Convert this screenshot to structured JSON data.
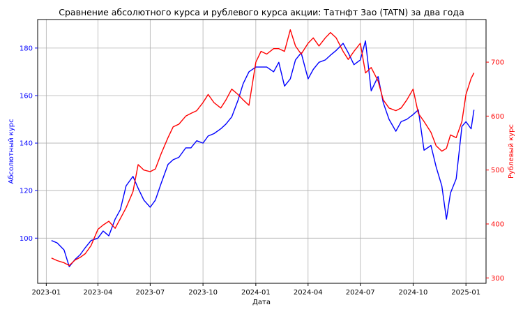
{
  "chart_data": {
    "type": "line",
    "title": "Сравнение абсолютного курса и рублевого курса акции: Татнфт 3ао (TATN) за два года",
    "xlabel": "Дата",
    "ylabel_left": "Абсолютный курс",
    "ylabel_right": "Рублевый курс",
    "x_ticks": [
      "2023-01",
      "2023-04",
      "2023-07",
      "2023-10",
      "2024-01",
      "2024-04",
      "2024-07",
      "2024-10",
      "2025-01"
    ],
    "y_left_ticks": [
      100,
      120,
      140,
      160,
      180
    ],
    "y_right_ticks": [
      300,
      400,
      500,
      600,
      700
    ],
    "y_left_range": [
      81,
      192
    ],
    "y_right_range": [
      290,
      779
    ],
    "x_range": [
      "2022-12-17",
      "2025-02-05"
    ],
    "grid": true,
    "series": [
      {
        "axis": "left",
        "color": "#0000ff",
        "x": [
          "2023-01-10",
          "2023-01-20",
          "2023-02-01",
          "2023-02-10",
          "2023-02-20",
          "2023-03-01",
          "2023-03-10",
          "2023-03-20",
          "2023-04-01",
          "2023-04-10",
          "2023-04-20",
          "2023-05-01",
          "2023-05-10",
          "2023-05-20",
          "2023-06-01",
          "2023-06-10",
          "2023-06-20",
          "2023-07-01",
          "2023-07-10",
          "2023-07-20",
          "2023-08-01",
          "2023-08-10",
          "2023-08-20",
          "2023-09-01",
          "2023-09-10",
          "2023-09-20",
          "2023-10-01",
          "2023-10-10",
          "2023-10-20",
          "2023-11-01",
          "2023-11-10",
          "2023-11-20",
          "2023-12-01",
          "2023-12-10",
          "2023-12-20",
          "2024-01-01",
          "2024-01-10",
          "2024-01-20",
          "2024-02-01",
          "2024-02-10",
          "2024-02-20",
          "2024-03-01",
          "2024-03-10",
          "2024-03-20",
          "2024-04-01",
          "2024-04-10",
          "2024-04-20",
          "2024-05-01",
          "2024-05-10",
          "2024-05-20",
          "2024-06-01",
          "2024-06-10",
          "2024-06-20",
          "2024-07-01",
          "2024-07-10",
          "2024-07-20",
          "2024-08-01",
          "2024-08-10",
          "2024-08-20",
          "2024-09-01",
          "2024-09-10",
          "2024-09-20",
          "2024-10-01",
          "2024-10-10",
          "2024-10-20",
          "2024-11-01",
          "2024-11-10",
          "2024-11-20",
          "2024-11-28",
          "2024-12-05",
          "2024-12-15",
          "2024-12-25",
          "2025-01-01",
          "2025-01-10",
          "2025-01-15"
        ],
        "values": [
          99,
          98,
          95,
          88,
          91,
          93,
          96,
          99,
          100,
          103,
          101,
          108,
          112,
          122,
          126,
          121,
          116,
          113,
          116,
          123,
          131,
          133,
          134,
          138,
          138,
          141,
          140,
          143,
          144,
          146,
          148,
          151,
          158,
          165,
          170,
          172,
          172,
          172,
          170,
          174,
          164,
          167,
          175,
          178,
          167,
          171,
          174,
          175,
          177,
          179,
          182,
          178,
          173,
          175,
          183,
          162,
          168,
          157,
          150,
          145,
          149,
          150,
          152,
          154,
          137,
          139,
          130,
          122,
          108,
          119,
          125,
          147,
          149,
          146,
          154
        ]
      },
      {
        "axis": "right",
        "color": "#ff0000",
        "x": [
          "2023-01-10",
          "2023-01-20",
          "2023-02-01",
          "2023-02-10",
          "2023-02-20",
          "2023-03-01",
          "2023-03-10",
          "2023-03-20",
          "2023-04-01",
          "2023-04-10",
          "2023-04-20",
          "2023-05-01",
          "2023-05-10",
          "2023-05-20",
          "2023-06-01",
          "2023-06-10",
          "2023-06-20",
          "2023-07-01",
          "2023-07-10",
          "2023-07-20",
          "2023-08-01",
          "2023-08-10",
          "2023-08-20",
          "2023-09-01",
          "2023-09-10",
          "2023-09-20",
          "2023-10-01",
          "2023-10-10",
          "2023-10-20",
          "2023-11-01",
          "2023-11-10",
          "2023-11-20",
          "2023-12-01",
          "2023-12-10",
          "2023-12-20",
          "2024-01-01",
          "2024-01-10",
          "2024-01-20",
          "2024-02-01",
          "2024-02-10",
          "2024-02-20",
          "2024-03-01",
          "2024-03-10",
          "2024-03-20",
          "2024-04-01",
          "2024-04-10",
          "2024-04-20",
          "2024-05-01",
          "2024-05-10",
          "2024-05-20",
          "2024-06-01",
          "2024-06-10",
          "2024-06-20",
          "2024-07-01",
          "2024-07-10",
          "2024-07-20",
          "2024-08-01",
          "2024-08-10",
          "2024-08-20",
          "2024-09-01",
          "2024-09-10",
          "2024-09-20",
          "2024-10-01",
          "2024-10-10",
          "2024-10-20",
          "2024-11-01",
          "2024-11-10",
          "2024-11-20",
          "2024-11-28",
          "2024-12-05",
          "2024-12-15",
          "2024-12-25",
          "2025-01-01",
          "2025-01-10",
          "2025-01-15"
        ],
        "values": [
          337,
          332,
          328,
          323,
          333,
          338,
          345,
          360,
          390,
          398,
          405,
          392,
          410,
          430,
          460,
          510,
          500,
          497,
          502,
          530,
          560,
          580,
          585,
          600,
          605,
          610,
          625,
          640,
          625,
          615,
          630,
          650,
          640,
          630,
          620,
          700,
          720,
          715,
          725,
          725,
          720,
          760,
          730,
          715,
          735,
          745,
          730,
          745,
          755,
          745,
          720,
          705,
          720,
          735,
          680,
          690,
          665,
          630,
          615,
          610,
          615,
          630,
          650,
          605,
          590,
          570,
          545,
          535,
          540,
          565,
          560,
          590,
          640,
          670,
          680
        ]
      }
    ]
  }
}
